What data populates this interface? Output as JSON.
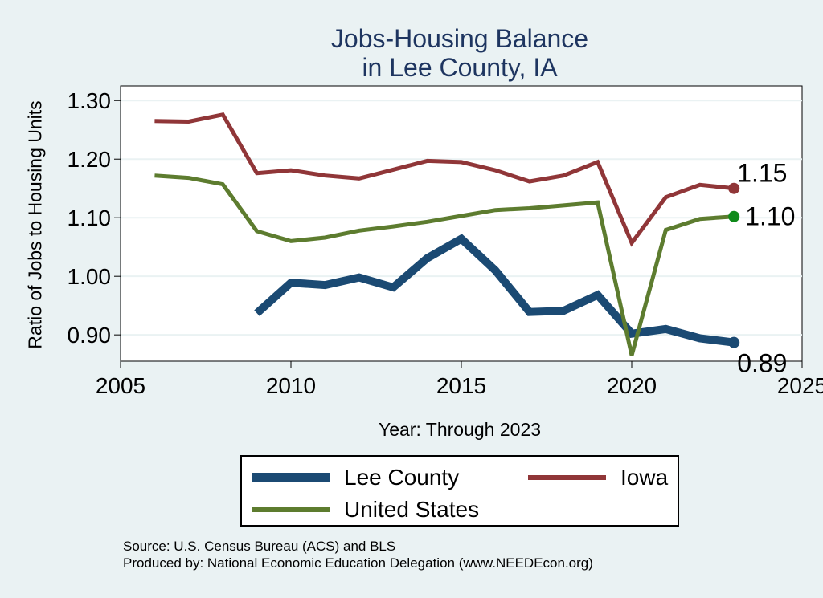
{
  "chart_data": {
    "type": "line",
    "title": [
      "Jobs-Housing Balance",
      "in Lee County, IA"
    ],
    "xlabel": "Year: Through 2023",
    "ylabel": "Ratio of Jobs to Housing Units",
    "xlim": [
      2005,
      2025
    ],
    "ylim": [
      0.855,
      1.325
    ],
    "xticks": [
      2005,
      2010,
      2015,
      2020,
      2025
    ],
    "yticks": [
      0.9,
      1.0,
      1.1,
      1.2,
      1.3
    ],
    "ytick_labels": [
      "0.90",
      "1.00",
      "1.10",
      "1.20",
      "1.30"
    ],
    "grid": true,
    "series": [
      {
        "name": "Lee County",
        "color": "#1b4a73",
        "x": [
          2009,
          2010,
          2011,
          2012,
          2013,
          2014,
          2015,
          2016,
          2017,
          2018,
          2019,
          2020,
          2021,
          2022,
          2023
        ],
        "values": [
          0.937,
          0.989,
          0.985,
          0.998,
          0.981,
          1.031,
          1.064,
          1.01,
          0.939,
          0.941,
          0.968,
          0.902,
          0.91,
          0.894,
          0.887
        ],
        "end_label": "0.89",
        "end_label_position": "below-right"
      },
      {
        "name": "Iowa",
        "color": "#903638",
        "x": [
          2006,
          2007,
          2008,
          2009,
          2010,
          2011,
          2012,
          2013,
          2014,
          2015,
          2016,
          2017,
          2018,
          2019,
          2020,
          2021,
          2022,
          2023
        ],
        "values": [
          1.265,
          1.264,
          1.276,
          1.176,
          1.181,
          1.172,
          1.167,
          1.182,
          1.197,
          1.195,
          1.181,
          1.162,
          1.172,
          1.195,
          1.057,
          1.135,
          1.156,
          1.15
        ],
        "end_label": "1.15",
        "end_label_position": "above-right"
      },
      {
        "name": "United States",
        "color": "#5d7c2f",
        "marker_color": "#0f8a1a",
        "x": [
          2006,
          2007,
          2008,
          2009,
          2010,
          2011,
          2012,
          2013,
          2014,
          2015,
          2016,
          2017,
          2018,
          2019,
          2020,
          2021,
          2022,
          2023
        ],
        "values": [
          1.172,
          1.168,
          1.157,
          1.077,
          1.06,
          1.066,
          1.078,
          1.085,
          1.093,
          1.103,
          1.113,
          1.116,
          1.121,
          1.126,
          0.865,
          1.079,
          1.098,
          1.102
        ],
        "end_label": "1.10",
        "end_label_position": "right"
      }
    ],
    "legend_position": "bottom"
  },
  "legend": {
    "items": [
      {
        "label": "Lee County",
        "color": "#1b4a73"
      },
      {
        "label": "Iowa",
        "color": "#903638"
      },
      {
        "label": "United States",
        "color": "#5d7c2f"
      }
    ]
  },
  "notes": {
    "source": "Source: U.S. Census Bureau (ACS) and BLS",
    "produced": "Produced by: National Economic Education Delegation (www.NEEDEcon.org)"
  }
}
